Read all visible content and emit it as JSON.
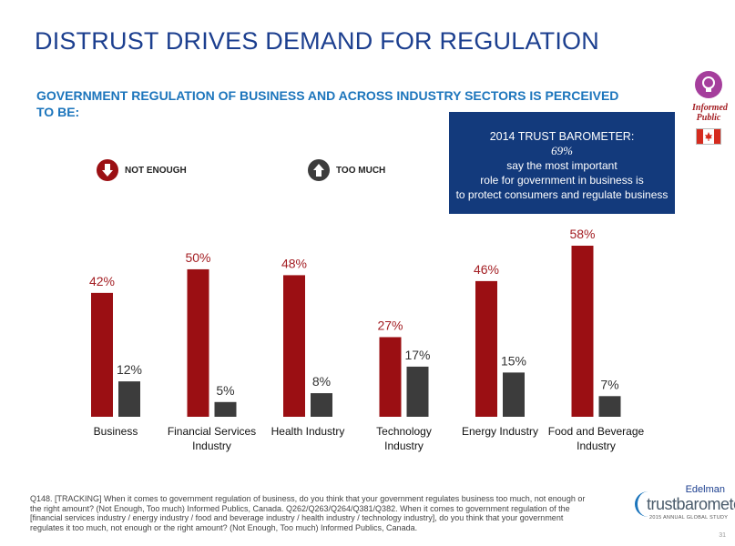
{
  "header": {
    "title": "DISTRUST DRIVES DEMAND FOR REGULATION",
    "subtitle": "GOVERNMENT REGULATION OF BUSINESS AND ACROSS INDUSTRY SECTORS IS PERCEIVED TO BE:"
  },
  "badge": {
    "label": "Informed Public",
    "icon": "lightbulb-icon",
    "flag": "canada-flag-icon",
    "color": "#a53e9c"
  },
  "callout": {
    "title": "2014 TRUST BAROMETER:",
    "percent": "69%",
    "line1": "say the most important",
    "line2": "role for government in business is",
    "line3": "to protect consumers and regulate business",
    "background": "#133a7c"
  },
  "legend": {
    "not_enough": {
      "label": "NOT ENOUGH",
      "icon": "arrow-down-icon",
      "color": "#9b0f13"
    },
    "too_much": {
      "label": "TOO MUCH",
      "icon": "arrow-up-icon",
      "color": "#3c3c3c"
    }
  },
  "chart_data": {
    "type": "bar",
    "categories": [
      "Business",
      "Financial Services Industry",
      "Health Industry",
      "Technology Industry",
      "Energy Industry",
      "Food and Beverage Industry"
    ],
    "category_lines": [
      [
        "Business"
      ],
      [
        "Financial Services",
        "Industry"
      ],
      [
        "Health Industry"
      ],
      [
        "Technology",
        "Industry"
      ],
      [
        "Energy Industry"
      ],
      [
        "Food and Beverage",
        "Industry"
      ]
    ],
    "series": [
      {
        "name": "NOT ENOUGH",
        "values": [
          42,
          50,
          48,
          27,
          46,
          58
        ],
        "labels": [
          "42%",
          "50%",
          "48%",
          "27%",
          "46%",
          "58%"
        ],
        "color": "#9b0f13",
        "label_color": "#a31d22"
      },
      {
        "name": "TOO MUCH",
        "values": [
          12,
          5,
          8,
          17,
          15,
          7
        ],
        "labels": [
          "12%",
          "5%",
          "8%",
          "17%",
          "15%",
          "7%"
        ],
        "color": "#3c3c3c",
        "label_color": "#333333"
      }
    ],
    "ylim": [
      0,
      58
    ],
    "grid": false,
    "legend": "top-left"
  },
  "footnote": "Q148. [TRACKING] When it comes to government regulation of business, do you think that your government regulates business too much, not enough or the right amount? (Not Enough, Too much) Informed Publics, Canada. Q262/Q263/Q264/Q381/Q382. When it comes to government regulation of the [financial services industry / energy industry / food and beverage industry / health industry / technology industry], do you think that your government regulates it too much, not enough or the right amount? (Not Enough, Too much) Informed Publics, Canada.",
  "logo": {
    "brand": "Edelman",
    "product": "trustbarometer",
    "tagline": "2015 ANNUAL GLOBAL STUDY"
  },
  "page_number": "31"
}
